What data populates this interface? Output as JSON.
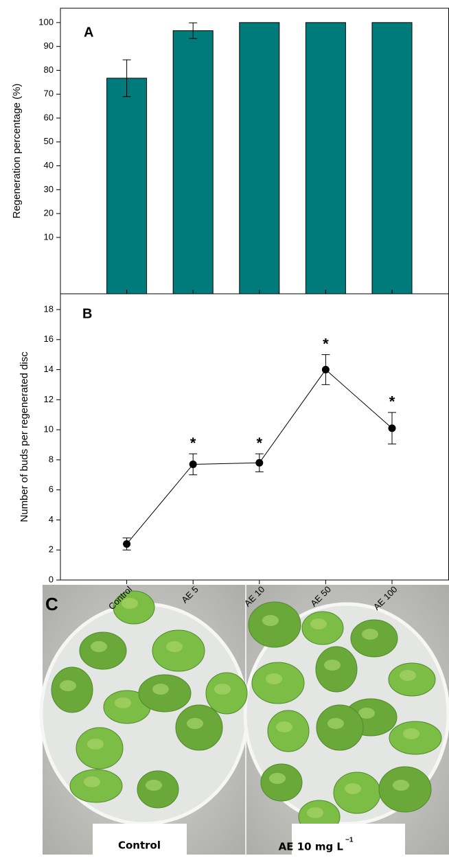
{
  "chart_data": [
    {
      "type": "bar",
      "panel_label": "A",
      "y_label": "Regeneration percentage (%)",
      "values": [
        76.7,
        96.6,
        100,
        100,
        100
      ],
      "errors": [
        7.7,
        3.3,
        0,
        0,
        0
      ],
      "color": "#007b7b",
      "ylim": [
        -13.6,
        106
      ],
      "yticks": [
        10,
        20,
        30,
        40,
        50,
        60,
        70,
        80,
        90,
        100
      ]
    },
    {
      "type": "line",
      "panel_label": "B",
      "y_label": "Number of buds per regenerated disc",
      "categories": [
        "Control",
        "AE 5",
        "AE 10",
        "AE 50",
        "AE 100"
      ],
      "values": [
        2.4,
        7.7,
        7.8,
        14.0,
        10.1
      ],
      "errors": [
        0.4,
        0.7,
        0.6,
        1.0,
        1.05
      ],
      "significance": [
        false,
        true,
        true,
        true,
        true
      ],
      "significance_mark": "*",
      "color": "#000000",
      "ylim": [
        0,
        19.05
      ],
      "yticks": [
        0,
        2,
        4,
        6,
        8,
        10,
        12,
        14,
        16,
        18
      ]
    }
  ],
  "photo_panel": {
    "panel_label": "C",
    "captions": [
      {
        "text": "Control"
      },
      {
        "text": "AE 10 mg L",
        "superscript": "−1"
      }
    ]
  }
}
